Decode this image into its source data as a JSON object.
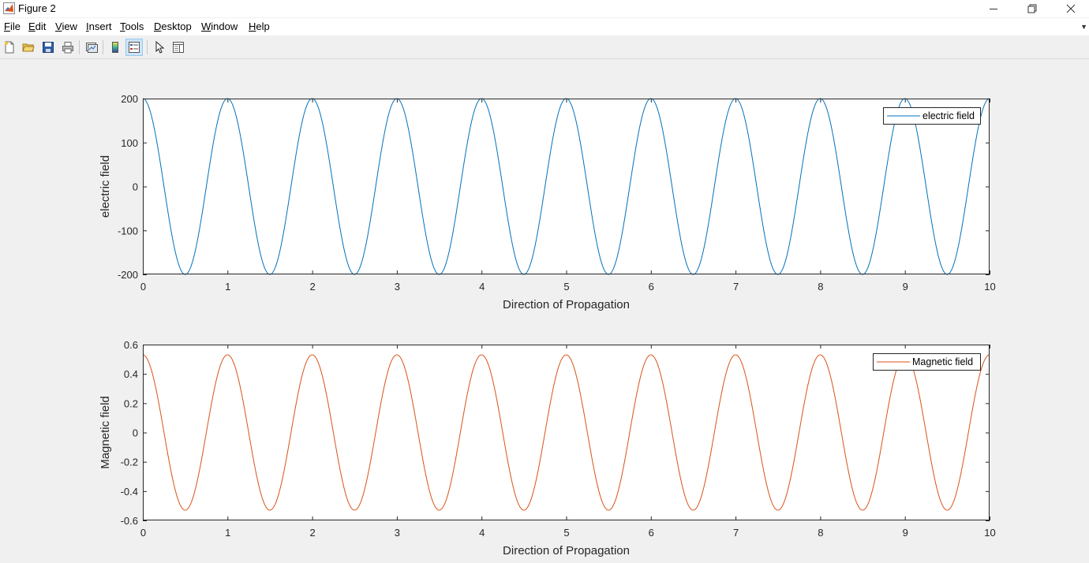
{
  "window": {
    "title": "Figure 2"
  },
  "menu": {
    "items": [
      {
        "mn": "F",
        "rest": "ile"
      },
      {
        "mn": "E",
        "rest": "dit"
      },
      {
        "mn": "V",
        "rest": "iew"
      },
      {
        "mn": "I",
        "rest": "nsert"
      },
      {
        "mn": "T",
        "rest": "ools"
      },
      {
        "mn": "D",
        "rest": "esktop"
      },
      {
        "mn": "W",
        "rest": "indow"
      },
      {
        "mn": "H",
        "rest": "elp"
      }
    ]
  },
  "toolbar": {
    "icons": [
      "new-figure-icon",
      "open-file-icon",
      "save-icon",
      "print-icon",
      "link-plot-icon",
      "colorbar-icon",
      "legend-icon",
      "pointer-icon",
      "property-editor-icon"
    ]
  },
  "colors": {
    "electric": "#0072bd",
    "magnetic": "#d95319"
  },
  "chart_data": [
    {
      "type": "line",
      "xlabel": "Direction of Propagation",
      "ylabel": "electric field",
      "xlim": [
        0,
        10
      ],
      "ylim": [
        -200,
        200
      ],
      "xticks": [
        "0",
        "1",
        "2",
        "3",
        "4",
        "5",
        "6",
        "7",
        "8",
        "9",
        "10"
      ],
      "yticks": [
        "200",
        "100",
        "0",
        "-100",
        "-200"
      ],
      "grid": false,
      "legend_position": "top-right",
      "series": [
        {
          "name": "electric field",
          "function": "200*cos(2*pi*x)",
          "amplitude": 200,
          "period": 1,
          "x_range": [
            0,
            10
          ]
        }
      ]
    },
    {
      "type": "line",
      "xlabel": "Direction of Propagation",
      "ylabel": "Magnetic field",
      "xlim": [
        0,
        10
      ],
      "ylim": [
        -0.6,
        0.6
      ],
      "xticks": [
        "0",
        "1",
        "2",
        "3",
        "4",
        "5",
        "6",
        "7",
        "8",
        "9",
        "10"
      ],
      "yticks": [
        "0.6",
        "0.4",
        "0.2",
        "0",
        "-0.2",
        "-0.4",
        "-0.6"
      ],
      "grid": false,
      "legend_position": "top-right",
      "series": [
        {
          "name": "Magnetic field",
          "function": "0.53*cos(2*pi*x)",
          "amplitude": 0.53,
          "period": 1,
          "x_range": [
            0,
            10
          ]
        }
      ]
    }
  ]
}
